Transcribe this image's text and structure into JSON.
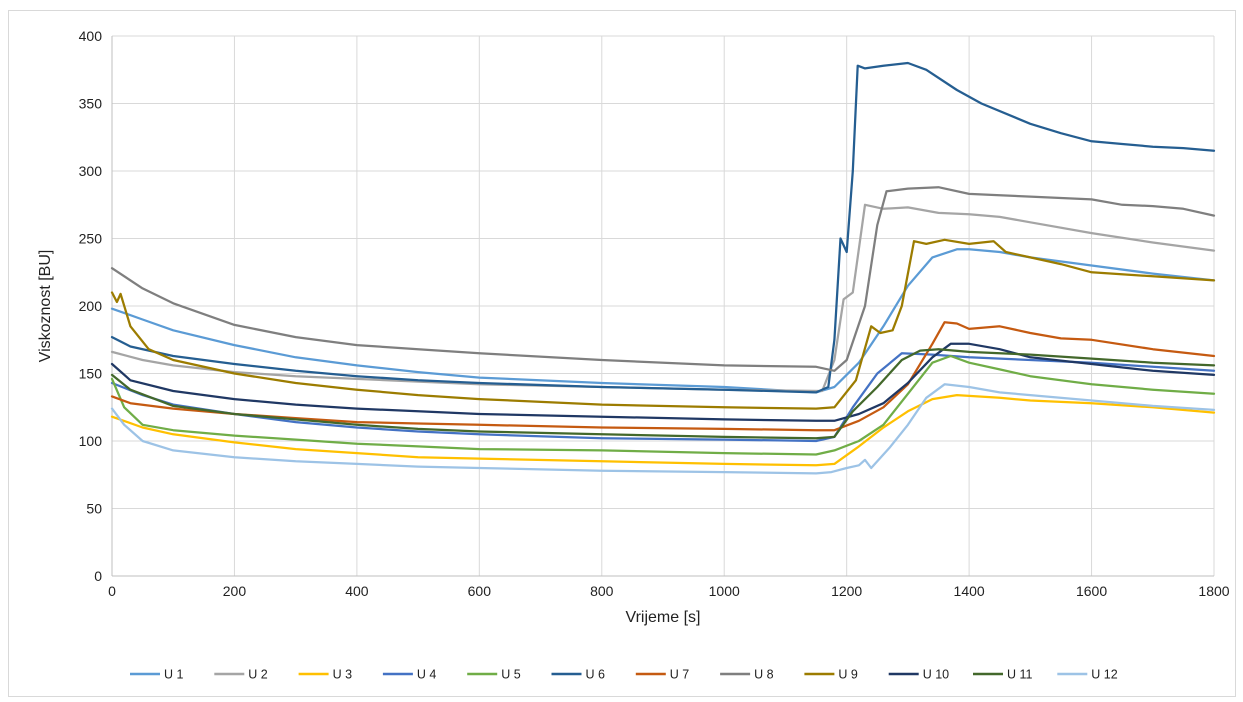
{
  "chart_data": {
    "type": "line",
    "title": "",
    "xlabel": "Vrijeme [s]",
    "ylabel": "Viskoznost [BU]",
    "xlim": [
      0,
      1800
    ],
    "ylim": [
      0,
      400
    ],
    "x_ticks": [
      0,
      200,
      400,
      600,
      800,
      1000,
      1200,
      1400,
      1600,
      1800
    ],
    "y_ticks": [
      0,
      50,
      100,
      150,
      200,
      250,
      300,
      350,
      400
    ],
    "grid": true,
    "legend_position": "bottom",
    "series": [
      {
        "name": "U 1",
        "color": "#5b9bd5",
        "points": [
          [
            0,
            198
          ],
          [
            50,
            190
          ],
          [
            100,
            182
          ],
          [
            200,
            171
          ],
          [
            300,
            162
          ],
          [
            400,
            156
          ],
          [
            500,
            151
          ],
          [
            600,
            147
          ],
          [
            800,
            143
          ],
          [
            1000,
            140
          ],
          [
            1150,
            136
          ],
          [
            1180,
            140
          ],
          [
            1220,
            158
          ],
          [
            1260,
            185
          ],
          [
            1300,
            215
          ],
          [
            1340,
            236
          ],
          [
            1380,
            242
          ],
          [
            1400,
            242
          ],
          [
            1450,
            240
          ],
          [
            1500,
            236
          ],
          [
            1600,
            230
          ],
          [
            1700,
            224
          ],
          [
            1800,
            219
          ]
        ]
      },
      {
        "name": "U 2",
        "color": "#a5a5a5",
        "points": [
          [
            0,
            166
          ],
          [
            50,
            160
          ],
          [
            100,
            156
          ],
          [
            200,
            151
          ],
          [
            300,
            148
          ],
          [
            400,
            146
          ],
          [
            500,
            144
          ],
          [
            600,
            142
          ],
          [
            800,
            140
          ],
          [
            1000,
            138
          ],
          [
            1160,
            137
          ],
          [
            1180,
            160
          ],
          [
            1195,
            205
          ],
          [
            1210,
            210
          ],
          [
            1230,
            275
          ],
          [
            1260,
            272
          ],
          [
            1300,
            273
          ],
          [
            1350,
            269
          ],
          [
            1400,
            268
          ],
          [
            1450,
            266
          ],
          [
            1500,
            262
          ],
          [
            1600,
            254
          ],
          [
            1700,
            247
          ],
          [
            1800,
            241
          ]
        ]
      },
      {
        "name": "U 3",
        "color": "#ffc000",
        "points": [
          [
            0,
            118
          ],
          [
            50,
            110
          ],
          [
            100,
            105
          ],
          [
            200,
            99
          ],
          [
            300,
            94
          ],
          [
            400,
            91
          ],
          [
            500,
            88
          ],
          [
            600,
            87
          ],
          [
            800,
            85
          ],
          [
            1000,
            83
          ],
          [
            1150,
            82
          ],
          [
            1180,
            83
          ],
          [
            1220,
            96
          ],
          [
            1260,
            110
          ],
          [
            1300,
            122
          ],
          [
            1340,
            131
          ],
          [
            1380,
            134
          ],
          [
            1450,
            132
          ],
          [
            1500,
            130
          ],
          [
            1600,
            128
          ],
          [
            1700,
            125
          ],
          [
            1800,
            121
          ]
        ]
      },
      {
        "name": "U 4",
        "color": "#4472c4",
        "points": [
          [
            0,
            143
          ],
          [
            50,
            134
          ],
          [
            100,
            127
          ],
          [
            200,
            120
          ],
          [
            300,
            114
          ],
          [
            400,
            110
          ],
          [
            500,
            107
          ],
          [
            600,
            105
          ],
          [
            800,
            102
          ],
          [
            1000,
            101
          ],
          [
            1150,
            100
          ],
          [
            1180,
            103
          ],
          [
            1210,
            125
          ],
          [
            1250,
            150
          ],
          [
            1290,
            165
          ],
          [
            1340,
            164
          ],
          [
            1400,
            162
          ],
          [
            1500,
            160
          ],
          [
            1600,
            158
          ],
          [
            1700,
            155
          ],
          [
            1800,
            152
          ]
        ]
      },
      {
        "name": "U 5",
        "color": "#70ad47",
        "points": [
          [
            0,
            146
          ],
          [
            20,
            125
          ],
          [
            50,
            112
          ],
          [
            100,
            108
          ],
          [
            200,
            104
          ],
          [
            300,
            101
          ],
          [
            400,
            98
          ],
          [
            500,
            96
          ],
          [
            600,
            94
          ],
          [
            800,
            93
          ],
          [
            1000,
            91
          ],
          [
            1150,
            90
          ],
          [
            1180,
            93
          ],
          [
            1220,
            100
          ],
          [
            1260,
            112
          ],
          [
            1300,
            135
          ],
          [
            1340,
            158
          ],
          [
            1370,
            163
          ],
          [
            1400,
            158
          ],
          [
            1450,
            153
          ],
          [
            1500,
            148
          ],
          [
            1600,
            142
          ],
          [
            1700,
            138
          ],
          [
            1800,
            135
          ]
        ]
      },
      {
        "name": "U 6",
        "color": "#255e91",
        "points": [
          [
            0,
            177
          ],
          [
            30,
            170
          ],
          [
            100,
            163
          ],
          [
            200,
            157
          ],
          [
            300,
            152
          ],
          [
            400,
            148
          ],
          [
            500,
            145
          ],
          [
            600,
            143
          ],
          [
            800,
            140
          ],
          [
            1000,
            138
          ],
          [
            1150,
            136
          ],
          [
            1170,
            140
          ],
          [
            1180,
            175
          ],
          [
            1190,
            250
          ],
          [
            1200,
            240
          ],
          [
            1210,
            300
          ],
          [
            1218,
            378
          ],
          [
            1230,
            376
          ],
          [
            1260,
            378
          ],
          [
            1300,
            380
          ],
          [
            1330,
            375
          ],
          [
            1380,
            360
          ],
          [
            1420,
            350
          ],
          [
            1500,
            335
          ],
          [
            1550,
            328
          ],
          [
            1600,
            322
          ],
          [
            1650,
            320
          ],
          [
            1700,
            318
          ],
          [
            1750,
            317
          ],
          [
            1800,
            315
          ]
        ]
      },
      {
        "name": "U 7",
        "color": "#c55a11",
        "points": [
          [
            0,
            133
          ],
          [
            30,
            128
          ],
          [
            100,
            124
          ],
          [
            200,
            120
          ],
          [
            300,
            117
          ],
          [
            400,
            114
          ],
          [
            500,
            113
          ],
          [
            600,
            112
          ],
          [
            800,
            110
          ],
          [
            1000,
            109
          ],
          [
            1150,
            108
          ],
          [
            1180,
            108
          ],
          [
            1220,
            115
          ],
          [
            1260,
            125
          ],
          [
            1300,
            142
          ],
          [
            1340,
            172
          ],
          [
            1360,
            188
          ],
          [
            1380,
            187
          ],
          [
            1400,
            183
          ],
          [
            1450,
            185
          ],
          [
            1500,
            180
          ],
          [
            1550,
            176
          ],
          [
            1600,
            175
          ],
          [
            1700,
            168
          ],
          [
            1800,
            163
          ]
        ]
      },
      {
        "name": "U 8",
        "color": "#7f7f7f",
        "points": [
          [
            0,
            228
          ],
          [
            50,
            213
          ],
          [
            100,
            202
          ],
          [
            200,
            186
          ],
          [
            300,
            177
          ],
          [
            400,
            171
          ],
          [
            500,
            168
          ],
          [
            600,
            165
          ],
          [
            800,
            160
          ],
          [
            1000,
            156
          ],
          [
            1150,
            155
          ],
          [
            1180,
            152
          ],
          [
            1200,
            160
          ],
          [
            1230,
            200
          ],
          [
            1250,
            260
          ],
          [
            1265,
            285
          ],
          [
            1300,
            287
          ],
          [
            1350,
            288
          ],
          [
            1400,
            283
          ],
          [
            1450,
            282
          ],
          [
            1500,
            281
          ],
          [
            1600,
            279
          ],
          [
            1650,
            275
          ],
          [
            1700,
            274
          ],
          [
            1750,
            272
          ],
          [
            1800,
            267
          ]
        ]
      },
      {
        "name": "U 9",
        "color": "#9c7c00",
        "points": [
          [
            0,
            210
          ],
          [
            8,
            203
          ],
          [
            14,
            209
          ],
          [
            30,
            185
          ],
          [
            60,
            168
          ],
          [
            100,
            160
          ],
          [
            200,
            150
          ],
          [
            300,
            143
          ],
          [
            400,
            138
          ],
          [
            500,
            134
          ],
          [
            600,
            131
          ],
          [
            800,
            127
          ],
          [
            1000,
            125
          ],
          [
            1150,
            124
          ],
          [
            1180,
            125
          ],
          [
            1215,
            145
          ],
          [
            1240,
            185
          ],
          [
            1255,
            180
          ],
          [
            1275,
            182
          ],
          [
            1290,
            200
          ],
          [
            1310,
            248
          ],
          [
            1330,
            246
          ],
          [
            1360,
            249
          ],
          [
            1400,
            246
          ],
          [
            1440,
            248
          ],
          [
            1460,
            240
          ],
          [
            1500,
            236
          ],
          [
            1550,
            231
          ],
          [
            1600,
            225
          ],
          [
            1700,
            222
          ],
          [
            1800,
            219
          ]
        ]
      },
      {
        "name": "U 10",
        "color": "#203864",
        "points": [
          [
            0,
            157
          ],
          [
            30,
            145
          ],
          [
            100,
            137
          ],
          [
            200,
            131
          ],
          [
            300,
            127
          ],
          [
            400,
            124
          ],
          [
            500,
            122
          ],
          [
            600,
            120
          ],
          [
            800,
            118
          ],
          [
            1000,
            116
          ],
          [
            1150,
            115
          ],
          [
            1180,
            115
          ],
          [
            1220,
            120
          ],
          [
            1260,
            128
          ],
          [
            1300,
            143
          ],
          [
            1340,
            162
          ],
          [
            1370,
            172
          ],
          [
            1400,
            172
          ],
          [
            1450,
            168
          ],
          [
            1500,
            162
          ],
          [
            1600,
            157
          ],
          [
            1700,
            152
          ],
          [
            1800,
            149
          ]
        ]
      },
      {
        "name": "U 11",
        "color": "#43682b",
        "points": [
          [
            0,
            149
          ],
          [
            30,
            138
          ],
          [
            100,
            126
          ],
          [
            200,
            120
          ],
          [
            300,
            116
          ],
          [
            400,
            112
          ],
          [
            500,
            109
          ],
          [
            600,
            107
          ],
          [
            800,
            105
          ],
          [
            1000,
            103
          ],
          [
            1150,
            102
          ],
          [
            1180,
            103
          ],
          [
            1210,
            122
          ],
          [
            1250,
            140
          ],
          [
            1290,
            160
          ],
          [
            1320,
            167
          ],
          [
            1350,
            168
          ],
          [
            1400,
            166
          ],
          [
            1450,
            165
          ],
          [
            1500,
            164
          ],
          [
            1600,
            161
          ],
          [
            1700,
            158
          ],
          [
            1800,
            156
          ]
        ]
      },
      {
        "name": "U 12",
        "color": "#9dc3e6",
        "points": [
          [
            0,
            124
          ],
          [
            20,
            112
          ],
          [
            50,
            100
          ],
          [
            100,
            93
          ],
          [
            200,
            88
          ],
          [
            300,
            85
          ],
          [
            400,
            83
          ],
          [
            500,
            81
          ],
          [
            600,
            80
          ],
          [
            800,
            78
          ],
          [
            1000,
            77
          ],
          [
            1150,
            76
          ],
          [
            1175,
            77
          ],
          [
            1200,
            80
          ],
          [
            1220,
            82
          ],
          [
            1230,
            86
          ],
          [
            1240,
            80
          ],
          [
            1270,
            95
          ],
          [
            1300,
            112
          ],
          [
            1330,
            132
          ],
          [
            1360,
            142
          ],
          [
            1400,
            140
          ],
          [
            1450,
            136
          ],
          [
            1500,
            134
          ],
          [
            1600,
            130
          ],
          [
            1700,
            126
          ],
          [
            1800,
            123
          ]
        ]
      }
    ]
  }
}
